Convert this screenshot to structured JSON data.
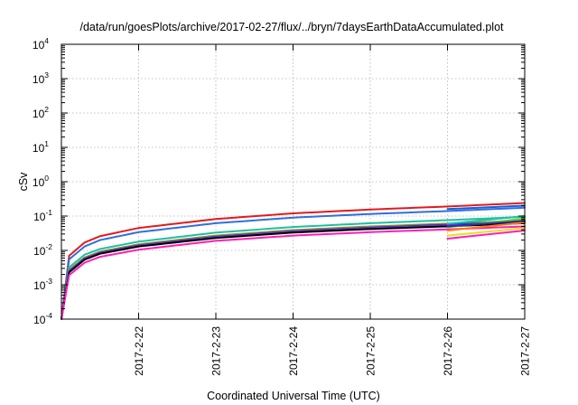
{
  "chart_data": {
    "type": "line",
    "title": "/data/run/goesPlots/archive/2017-02-27/flux/../bryn/7daysEarthDataAccumulated.plot",
    "xlabel": "Coordinated Universal Time (UTC)",
    "ylabel": "cSv",
    "y_scale": "log",
    "ylim": [
      0.0001,
      10000
    ],
    "y_ticks": [
      {
        "value": 0.0001,
        "base": "10",
        "exp": "-4"
      },
      {
        "value": 0.001,
        "base": "10",
        "exp": "-3"
      },
      {
        "value": 0.01,
        "base": "10",
        "exp": "-2"
      },
      {
        "value": 0.1,
        "base": "10",
        "exp": "-1"
      },
      {
        "value": 1,
        "base": "10",
        "exp": "0"
      },
      {
        "value": 10,
        "base": "10",
        "exp": "1"
      },
      {
        "value": 100,
        "base": "10",
        "exp": "2"
      },
      {
        "value": 1000,
        "base": "10",
        "exp": "3"
      },
      {
        "value": 10000,
        "base": "10",
        "exp": "4"
      }
    ],
    "xlim": [
      "2017-02-21T00:00",
      "2017-02-27T00:00"
    ],
    "x_ticks": [
      "2017-2-22",
      "2017-2-23",
      "2017-2-24",
      "2017-2-25",
      "2017-2-26",
      "2017-2-27"
    ],
    "grid": true,
    "legend": "none",
    "series": [
      {
        "color": "#e41a1c",
        "x": [
          "2017-02-21T00:00",
          "2017-02-21T02:24",
          "2017-02-21T07:12",
          "2017-02-21T12:00",
          "2017-02-22T00:00",
          "2017-02-23T00:00",
          "2017-02-24T00:00",
          "2017-02-25T00:00",
          "2017-02-26T00:00",
          "2017-02-27T00:00"
        ],
        "y": [
          0.0001,
          0.007,
          0.017,
          0.026,
          0.045,
          0.082,
          0.12,
          0.155,
          0.19,
          0.24
        ]
      },
      {
        "color": "#2f6fe0",
        "x": [
          "2017-02-21T00:00",
          "2017-02-21T02:24",
          "2017-02-21T07:12",
          "2017-02-21T12:00",
          "2017-02-22T00:00",
          "2017-02-23T00:00",
          "2017-02-24T00:00",
          "2017-02-25T00:00",
          "2017-02-26T00:00",
          "2017-02-27T00:00"
        ],
        "y": [
          0.0001,
          0.0055,
          0.013,
          0.02,
          0.034,
          0.062,
          0.09,
          0.115,
          0.14,
          0.175
        ]
      },
      {
        "color": "#1fbfa0",
        "x": [
          "2017-02-21T00:00",
          "2017-02-21T02:24",
          "2017-02-21T07:12",
          "2017-02-21T12:00",
          "2017-02-22T00:00",
          "2017-02-23T00:00",
          "2017-02-24T00:00",
          "2017-02-25T00:00",
          "2017-02-26T00:00",
          "2017-02-27T00:00"
        ],
        "y": [
          0.0001,
          0.0032,
          0.0075,
          0.011,
          0.018,
          0.033,
          0.048,
          0.062,
          0.076,
          0.095
        ]
      },
      {
        "color": "#8f8f2a",
        "x": [
          "2017-02-21T00:00",
          "2017-02-21T02:24",
          "2017-02-21T07:12",
          "2017-02-21T12:00",
          "2017-02-22T00:00",
          "2017-02-23T00:00",
          "2017-02-24T00:00",
          "2017-02-25T00:00",
          "2017-02-26T00:00",
          "2017-02-27T00:00"
        ],
        "y": [
          0.0001,
          0.0027,
          0.0062,
          0.0092,
          0.015,
          0.027,
          0.039,
          0.05,
          0.06,
          0.075
        ]
      },
      {
        "color": "#1f3fb0",
        "x": [
          "2017-02-21T00:00",
          "2017-02-21T02:24",
          "2017-02-21T07:12",
          "2017-02-21T12:00",
          "2017-02-22T00:00",
          "2017-02-23T00:00",
          "2017-02-24T00:00",
          "2017-02-25T00:00",
          "2017-02-26T00:00",
          "2017-02-27T00:00"
        ],
        "y": [
          0.0001,
          0.0025,
          0.0058,
          0.0086,
          0.014,
          0.025,
          0.036,
          0.046,
          0.056,
          0.07
        ]
      },
      {
        "color": "#8a2be2",
        "x": [
          "2017-02-21T00:00",
          "2017-02-21T02:24",
          "2017-02-21T07:12",
          "2017-02-21T12:00",
          "2017-02-22T00:00",
          "2017-02-23T00:00",
          "2017-02-24T00:00",
          "2017-02-25T00:00",
          "2017-02-26T00:00",
          "2017-02-27T00:00"
        ],
        "y": [
          0.0001,
          0.0024,
          0.0056,
          0.0083,
          0.0135,
          0.024,
          0.035,
          0.044,
          0.053,
          0.066
        ]
      },
      {
        "color": "#000000",
        "x": [
          "2017-02-21T00:00",
          "2017-02-21T02:24",
          "2017-02-21T07:12",
          "2017-02-21T12:00",
          "2017-02-22T00:00",
          "2017-02-23T00:00",
          "2017-02-24T00:00",
          "2017-02-25T00:00",
          "2017-02-26T00:00",
          "2017-02-27T00:00"
        ],
        "y": [
          0.0001,
          0.0023,
          0.0054,
          0.008,
          0.013,
          0.023,
          0.033,
          0.042,
          0.05,
          0.062
        ]
      },
      {
        "color": "#ff1fb4",
        "x": [
          "2017-02-21T00:00",
          "2017-02-21T02:24",
          "2017-02-21T07:12",
          "2017-02-21T12:00",
          "2017-02-22T00:00",
          "2017-02-23T00:00",
          "2017-02-24T00:00",
          "2017-02-25T00:00",
          "2017-02-26T00:00",
          "2017-02-27T00:00"
        ],
        "y": [
          0.0001,
          0.0019,
          0.0044,
          0.0065,
          0.0105,
          0.019,
          0.027,
          0.034,
          0.041,
          0.05
        ]
      },
      {
        "color": "#1560d8",
        "x": [
          "2017-02-26T00:00",
          "2017-02-27T00:00"
        ],
        "y": [
          0.16,
          0.2
        ]
      },
      {
        "color": "#19c4b0",
        "x": [
          "2017-02-26T00:00",
          "2017-02-27T00:00"
        ],
        "y": [
          0.06,
          0.1
        ]
      },
      {
        "color": "#6fd020",
        "x": [
          "2017-02-26T00:00",
          "2017-02-27T00:00"
        ],
        "y": [
          0.047,
          0.085
        ]
      },
      {
        "color": "#2a2ab8",
        "x": [
          "2017-02-26T00:00",
          "2017-02-27T00:00"
        ],
        "y": [
          0.05,
          0.072
        ]
      },
      {
        "color": "#ff7a00",
        "x": [
          "2017-02-26T00:00",
          "2017-02-27T00:00"
        ],
        "y": [
          0.038,
          0.065
        ]
      },
      {
        "color": "#e8e020",
        "x": [
          "2017-02-26T00:00",
          "2017-02-27T00:00"
        ],
        "y": [
          0.027,
          0.045
        ]
      },
      {
        "color": "#ff1fb4",
        "x": [
          "2017-02-26T00:00",
          "2017-02-27T00:00"
        ],
        "y": [
          0.022,
          0.038
        ]
      }
    ]
  }
}
